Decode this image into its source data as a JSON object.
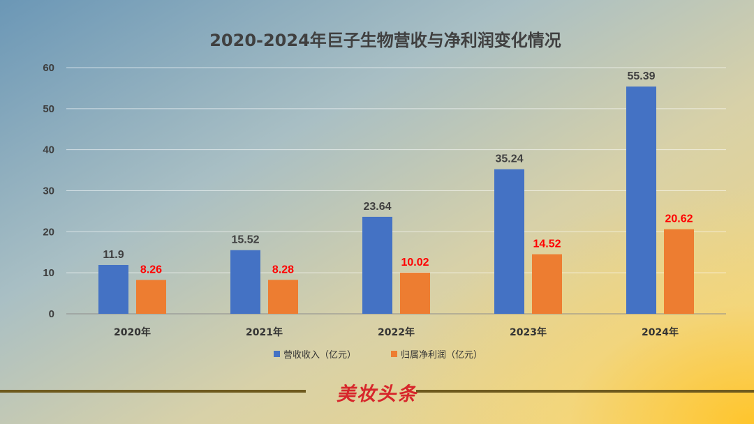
{
  "chart_data": {
    "type": "bar",
    "title": "2020-2024年巨子生物营收与净利润变化情况",
    "categories": [
      "2020年",
      "2021年",
      "2022年",
      "2023年",
      "2024年"
    ],
    "series": [
      {
        "name": "营收收入（亿元）",
        "color": "#4472c4",
        "label_color": "#404040",
        "values": [
          11.9,
          15.52,
          23.64,
          35.24,
          55.39
        ]
      },
      {
        "name": "归属净利润（亿元）",
        "color": "#ed7d31",
        "label_color": "#ff0000",
        "values": [
          8.26,
          8.28,
          10.02,
          14.52,
          20.62
        ]
      }
    ],
    "ylim": [
      0,
      60
    ],
    "yticks": [
      0,
      10,
      20,
      30,
      40,
      50,
      60
    ],
    "grid": true,
    "legend": "bottom"
  },
  "footer": {
    "brand": "美妆头条"
  }
}
